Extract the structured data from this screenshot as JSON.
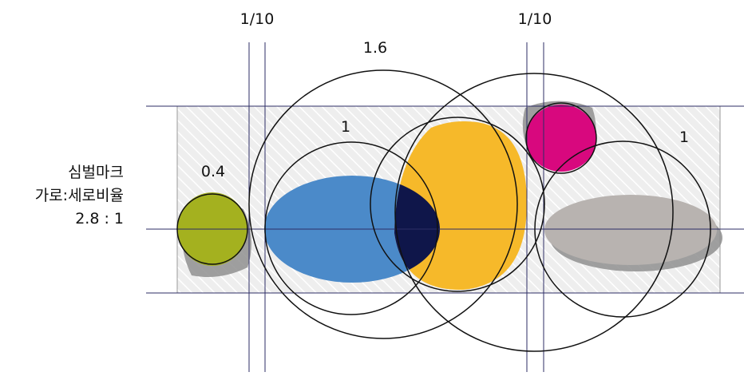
{
  "side_label": {
    "line1": "심벌마크",
    "line2": "가로:세로비율",
    "line3": "2.8 : 1"
  },
  "labels": {
    "left_gap": "1/10",
    "right_gap": "1/10",
    "large_circle": "1.6",
    "middle_circle": "1",
    "right_circle": "1",
    "small_circle": "0.4"
  },
  "colors": {
    "olive": "#a4b11f",
    "blue": "#4b8ac9",
    "yellow": "#f6b92a",
    "navy": "#0f164a",
    "magenta": "#d8087e",
    "gray": "#b8b3b0",
    "shadow": "#8f8f8f",
    "guide": "#2d2d66",
    "hatch_bg": "#eeeeee"
  }
}
